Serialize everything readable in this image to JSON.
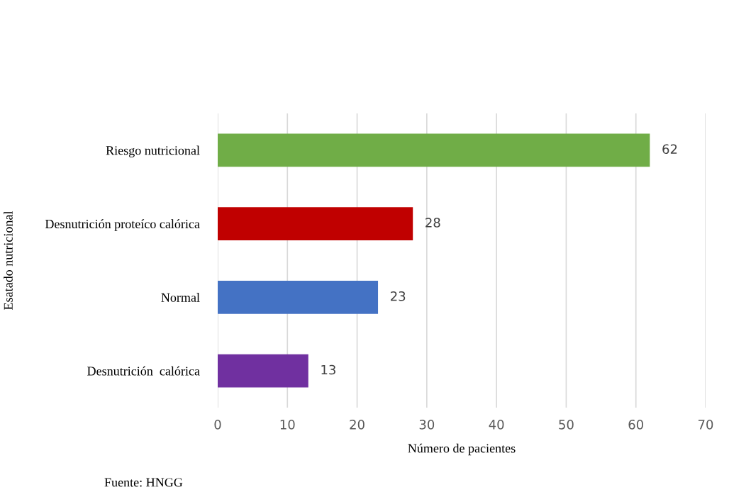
{
  "chart_data": {
    "type": "bar",
    "orientation": "horizontal",
    "xlabel": "Número de pacientes",
    "ylabel": "Esatado nutricional",
    "categories": [
      "Riesgo nutricional",
      "Desnutrición proteíco calórica",
      "Normal",
      "Desnutrición  calórica"
    ],
    "values": [
      62,
      28,
      23,
      13
    ],
    "colors": [
      "#70ad47",
      "#c00000",
      "#4472c4",
      "#7030a0"
    ],
    "xlim": [
      0,
      70
    ],
    "xticks": [
      0,
      10,
      20,
      30,
      40,
      50,
      60,
      70
    ],
    "grid": "x",
    "data_labels": true,
    "annotations": [
      "Fuente: HNGG"
    ]
  }
}
